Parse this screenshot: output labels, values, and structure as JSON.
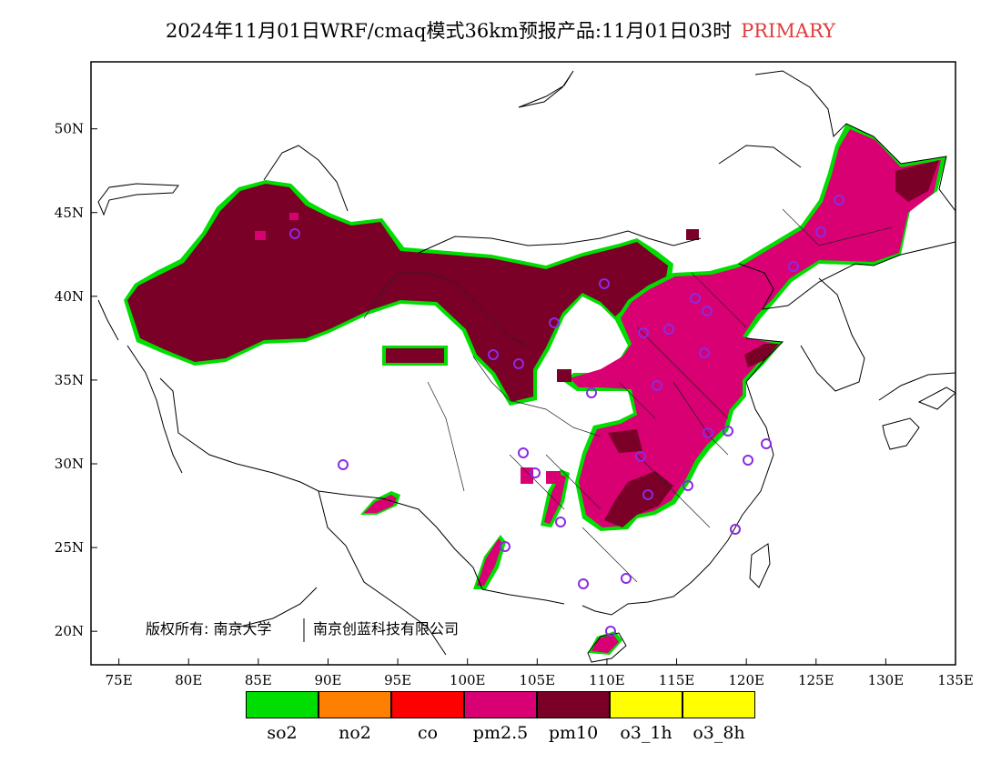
{
  "title": {
    "main": "2024年11月01日WRF/cmaq模式36km预报产品:11月01日03时",
    "tag": "PRIMARY",
    "tag_color": "#e03c3c"
  },
  "map": {
    "lon_range": [
      73,
      135
    ],
    "lat_range": [
      18,
      54
    ],
    "lon_ticks": [
      "75E",
      "80E",
      "85E",
      "90E",
      "95E",
      "100E",
      "105E",
      "110E",
      "115E",
      "120E",
      "125E",
      "130E",
      "135E"
    ],
    "lat_ticks": [
      "20N",
      "25N",
      "30N",
      "35N",
      "40N",
      "45N",
      "50N"
    ],
    "copyright_left": "版权所有: 南京大学",
    "copyright_right": "南京创蓝科技有限公司",
    "station_marker_color": "#8a2be2"
  },
  "legend": [
    {
      "label": "so2",
      "color": "#00dd00"
    },
    {
      "label": "no2",
      "color": "#ff8000"
    },
    {
      "label": "co",
      "color": "#ff0000"
    },
    {
      "label": "pm2.5",
      "color": "#d80072"
    },
    {
      "label": "pm10",
      "color": "#7a0028"
    },
    {
      "label": "o3_1h",
      "color": "#ffff00"
    },
    {
      "label": "o3_8h",
      "color": "#ffff00"
    }
  ]
}
